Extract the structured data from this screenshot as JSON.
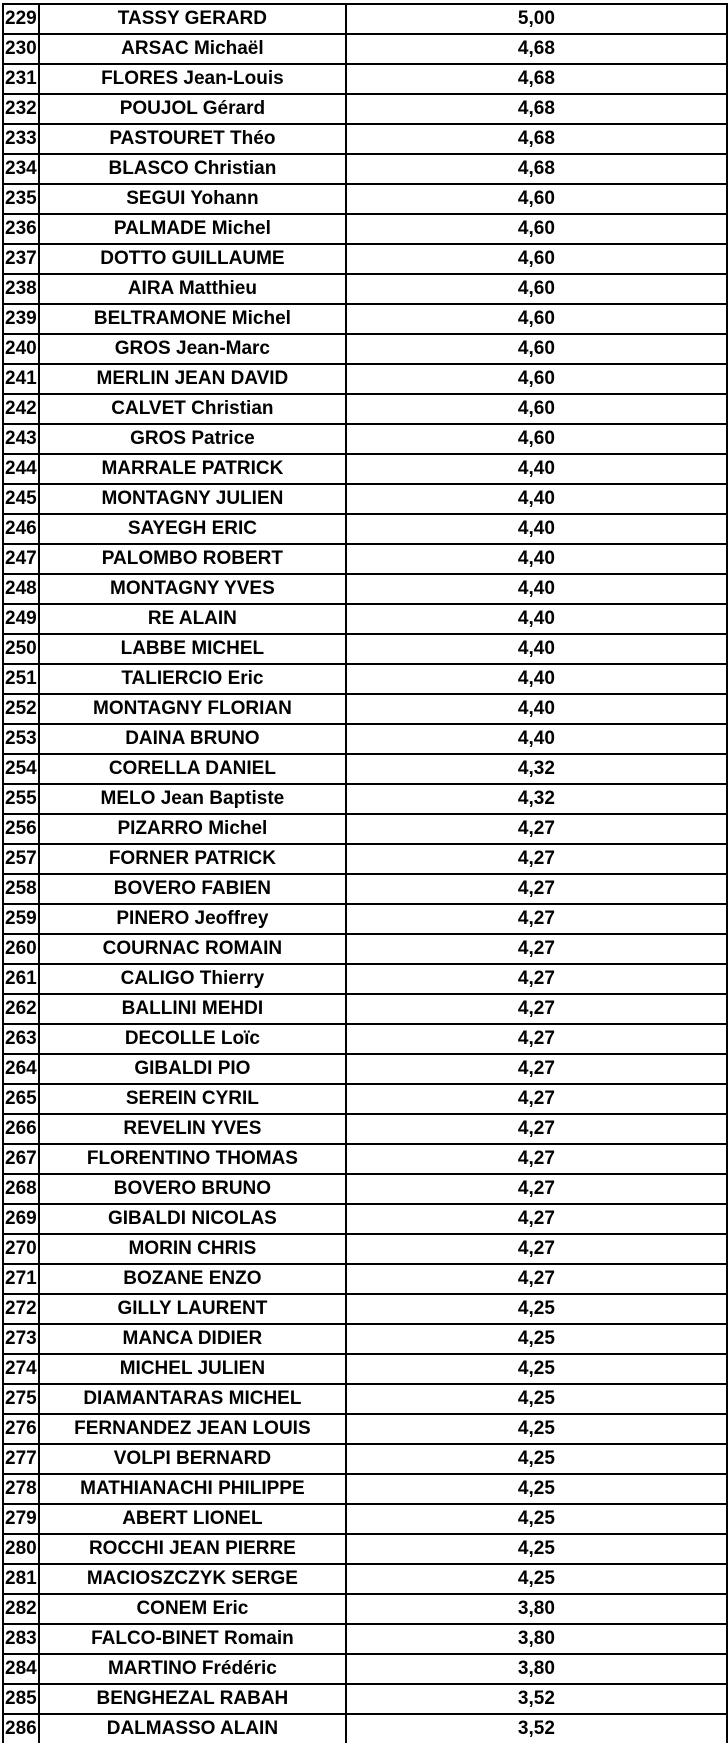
{
  "rows": [
    {
      "rank": "229",
      "name": "TASSY GERARD",
      "score": "5,00"
    },
    {
      "rank": "230",
      "name": "ARSAC Michaël",
      "score": "4,68"
    },
    {
      "rank": "231",
      "name": "FLORES Jean-Louis",
      "score": "4,68"
    },
    {
      "rank": "232",
      "name": "POUJOL Gérard",
      "score": "4,68"
    },
    {
      "rank": "233",
      "name": "PASTOURET Théo",
      "score": "4,68"
    },
    {
      "rank": "234",
      "name": "BLASCO Christian",
      "score": "4,68"
    },
    {
      "rank": "235",
      "name": "SEGUI Yohann",
      "score": "4,60"
    },
    {
      "rank": "236",
      "name": "PALMADE Michel",
      "score": "4,60"
    },
    {
      "rank": "237",
      "name": "DOTTO GUILLAUME",
      "score": "4,60"
    },
    {
      "rank": "238",
      "name": "AIRA Matthieu",
      "score": "4,60"
    },
    {
      "rank": "239",
      "name": "BELTRAMONE Michel",
      "score": "4,60"
    },
    {
      "rank": "240",
      "name": "GROS Jean-Marc",
      "score": "4,60"
    },
    {
      "rank": "241",
      "name": "MERLIN JEAN DAVID",
      "score": "4,60"
    },
    {
      "rank": "242",
      "name": "CALVET Christian",
      "score": "4,60"
    },
    {
      "rank": "243",
      "name": "GROS Patrice",
      "score": "4,60"
    },
    {
      "rank": "244",
      "name": "MARRALE PATRICK",
      "score": "4,40"
    },
    {
      "rank": "245",
      "name": "MONTAGNY JULIEN",
      "score": "4,40"
    },
    {
      "rank": "246",
      "name": "SAYEGH ERIC",
      "score": "4,40"
    },
    {
      "rank": "247",
      "name": "PALOMBO ROBERT",
      "score": "4,40"
    },
    {
      "rank": "248",
      "name": "MONTAGNY YVES",
      "score": "4,40"
    },
    {
      "rank": "249",
      "name": "RE ALAIN",
      "score": "4,40"
    },
    {
      "rank": "250",
      "name": "LABBE MICHEL",
      "score": "4,40"
    },
    {
      "rank": "251",
      "name": "TALIERCIO Eric",
      "score": "4,40"
    },
    {
      "rank": "252",
      "name": "MONTAGNY FLORIAN",
      "score": "4,40"
    },
    {
      "rank": "253",
      "name": "DAINA BRUNO",
      "score": "4,40"
    },
    {
      "rank": "254",
      "name": "CORELLA DANIEL",
      "score": "4,32"
    },
    {
      "rank": "255",
      "name": "MELO Jean Baptiste",
      "score": "4,32"
    },
    {
      "rank": "256",
      "name": "PIZARRO Michel",
      "score": "4,27"
    },
    {
      "rank": "257",
      "name": "FORNER PATRICK",
      "score": "4,27"
    },
    {
      "rank": "258",
      "name": "BOVERO FABIEN",
      "score": "4,27"
    },
    {
      "rank": "259",
      "name": "PINERO Jeoffrey",
      "score": "4,27"
    },
    {
      "rank": "260",
      "name": "COURNAC ROMAIN",
      "score": "4,27"
    },
    {
      "rank": "261",
      "name": "CALIGO Thierry",
      "score": "4,27"
    },
    {
      "rank": "262",
      "name": "BALLINI MEHDI",
      "score": "4,27"
    },
    {
      "rank": "263",
      "name": "DECOLLE Loïc",
      "score": "4,27"
    },
    {
      "rank": "264",
      "name": "GIBALDI PIO",
      "score": "4,27"
    },
    {
      "rank": "265",
      "name": "SEREIN CYRIL",
      "score": "4,27"
    },
    {
      "rank": "266",
      "name": "REVELIN YVES",
      "score": "4,27"
    },
    {
      "rank": "267",
      "name": "FLORENTINO THOMAS",
      "score": "4,27"
    },
    {
      "rank": "268",
      "name": "BOVERO BRUNO",
      "score": "4,27"
    },
    {
      "rank": "269",
      "name": "GIBALDI NICOLAS",
      "score": "4,27"
    },
    {
      "rank": "270",
      "name": "MORIN CHRIS",
      "score": "4,27"
    },
    {
      "rank": "271",
      "name": "BOZANE ENZO",
      "score": "4,27"
    },
    {
      "rank": "272",
      "name": "GILLY LAURENT",
      "score": "4,25"
    },
    {
      "rank": "273",
      "name": "MANCA DIDIER",
      "score": "4,25"
    },
    {
      "rank": "274",
      "name": "MICHEL JULIEN",
      "score": "4,25"
    },
    {
      "rank": "275",
      "name": "DIAMANTARAS MICHEL",
      "score": "4,25"
    },
    {
      "rank": "276",
      "name": "FERNANDEZ JEAN LOUIS",
      "score": "4,25"
    },
    {
      "rank": "277",
      "name": "VOLPI BERNARD",
      "score": "4,25"
    },
    {
      "rank": "278",
      "name": "MATHIANACHI PHILIPPE",
      "score": "4,25"
    },
    {
      "rank": "279",
      "name": "ABERT LIONEL",
      "score": "4,25"
    },
    {
      "rank": "280",
      "name": "ROCCHI JEAN PIERRE",
      "score": "4,25"
    },
    {
      "rank": "281",
      "name": "MACIOSZCZYK SERGE",
      "score": "4,25"
    },
    {
      "rank": "282",
      "name": "CONEM Eric",
      "score": "3,80"
    },
    {
      "rank": "283",
      "name": "FALCO-BINET Romain",
      "score": "3,80"
    },
    {
      "rank": "284",
      "name": "MARTINO Frédéric",
      "score": "3,80"
    },
    {
      "rank": "285",
      "name": "BENGHEZAL RABAH",
      "score": "3,52"
    },
    {
      "rank": "286",
      "name": "DALMASSO ALAIN",
      "score": "3,52"
    }
  ]
}
